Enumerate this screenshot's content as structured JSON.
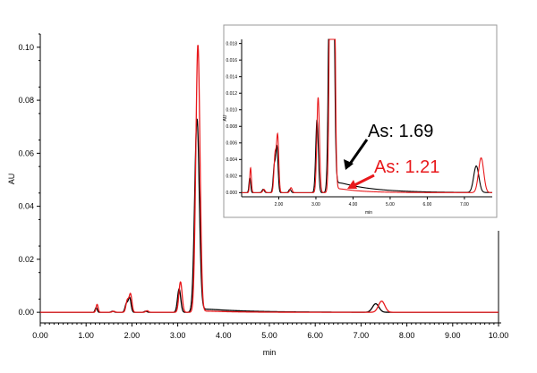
{
  "chart_data": {
    "type": "line",
    "xlabel": "min",
    "ylabel": "AU",
    "xlim": [
      0,
      10
    ],
    "ylim": [
      -0.004,
      0.105
    ],
    "grid": false,
    "x_ticks": [
      "0.00",
      "1.00",
      "2.00",
      "3.00",
      "4.00",
      "5.00",
      "6.00",
      "7.00",
      "8.00",
      "9.00",
      "10.00"
    ],
    "y_ticks": [
      "0.00",
      "0.02",
      "0.04",
      "0.06",
      "0.08",
      "0.10"
    ],
    "series": [
      {
        "color": "#000000",
        "peaks": [
          {
            "t": 1.22,
            "h": 0.0018,
            "w": 0.022
          },
          {
            "t": 1.58,
            "h": 0.0004,
            "w": 0.03
          },
          {
            "t": 1.88,
            "h": 0.0032,
            "w": 0.03
          },
          {
            "t": 1.95,
            "h": 0.0055,
            "w": 0.03
          },
          {
            "t": 2.3,
            "h": 0.0004,
            "w": 0.03
          },
          {
            "t": 3.03,
            "h": 0.0088,
            "w": 0.035
          },
          {
            "t": 3.42,
            "h": 0.073,
            "w": 0.05,
            "tail": 0.0016,
            "tau": 0.9
          },
          {
            "t": 7.32,
            "h": 0.0032,
            "w": 0.07
          }
        ]
      },
      {
        "color": "#e8191c",
        "peaks": [
          {
            "t": 1.24,
            "h": 0.003,
            "w": 0.022
          },
          {
            "t": 1.6,
            "h": 0.0004,
            "w": 0.03
          },
          {
            "t": 1.9,
            "h": 0.0045,
            "w": 0.03
          },
          {
            "t": 1.97,
            "h": 0.0068,
            "w": 0.03
          },
          {
            "t": 2.33,
            "h": 0.0006,
            "w": 0.03
          },
          {
            "t": 3.06,
            "h": 0.0115,
            "w": 0.035
          },
          {
            "t": 3.44,
            "h": 0.101,
            "w": 0.045,
            "tail": 0.0007,
            "tau": 0.6
          },
          {
            "t": 7.45,
            "h": 0.0042,
            "w": 0.07
          }
        ]
      }
    ],
    "inset": {
      "xlim": [
        1.0,
        7.75
      ],
      "ylim": [
        -0.0005,
        0.0185
      ],
      "xlabel": "min",
      "ylabel": "AU",
      "x_ticks": [
        "2.00",
        "3.00",
        "4.00",
        "5.00",
        "6.00",
        "7.00"
      ],
      "y_ticks": [
        "0.000",
        "0.002",
        "0.004",
        "0.006",
        "0.008",
        "0.010",
        "0.012",
        "0.014",
        "0.016",
        "0.018"
      ]
    },
    "annotations": [
      {
        "text": "As: 1.69",
        "color": "#000000",
        "point_x": 3.62,
        "point_y": 0.0019
      },
      {
        "text": "As: 1.21",
        "color": "#e8191c",
        "point_x": 3.72,
        "point_y": 0.0006
      }
    ]
  }
}
